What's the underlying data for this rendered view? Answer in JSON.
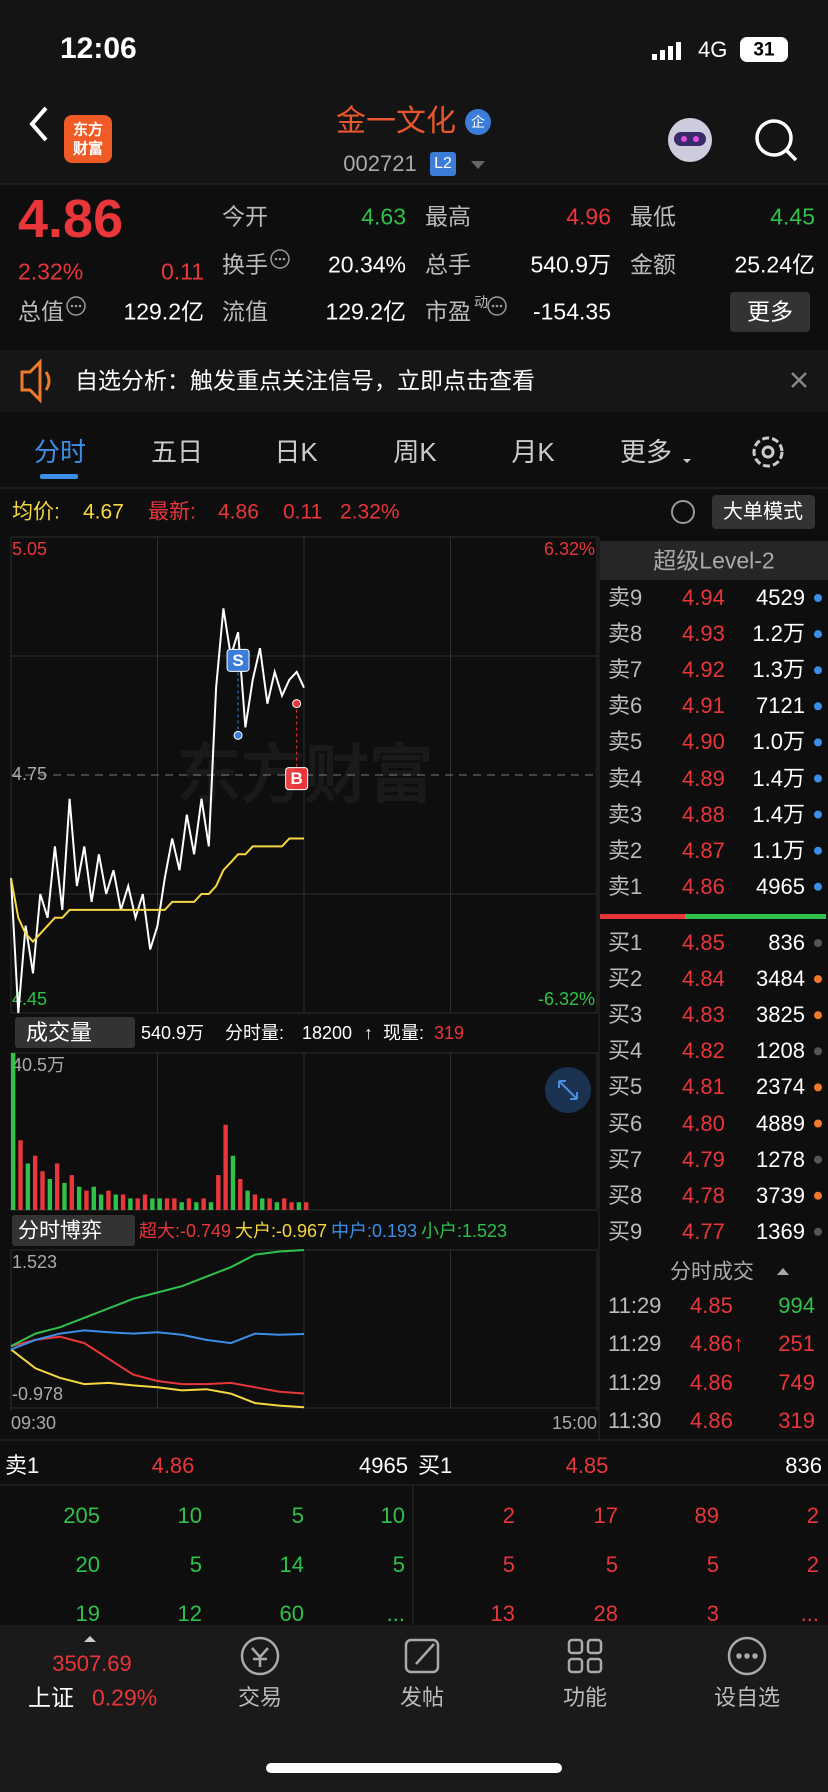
{
  "status": {
    "time": "12:06",
    "network": "4G",
    "battery": "31"
  },
  "nav": {
    "logo": [
      "东方",
      "财富"
    ],
    "title": "金一文化",
    "badge": "企",
    "code": "002721",
    "level": "L2"
  },
  "quote": {
    "price": "4.86",
    "change_pct": "2.32%",
    "change": "0.11",
    "stats": [
      [
        {
          "label": "今开",
          "value": "4.63",
          "color": "#2fc14a"
        },
        {
          "label": "最高",
          "value": "4.96",
          "color": "#e8363a"
        },
        {
          "label": "最低",
          "value": "4.45",
          "color": "#2fc14a"
        }
      ],
      [
        {
          "label": "换手",
          "value": "20.34%",
          "info": true
        },
        {
          "label": "总手",
          "value": "540.9万"
        },
        {
          "label": "金额",
          "value": "25.24亿"
        }
      ],
      [
        {
          "label": "总值",
          "value": "129.2亿",
          "info": true
        },
        {
          "label": "流值",
          "value": "129.2亿"
        },
        {
          "label": "市盈",
          "sup": "动",
          "value": "-154.35",
          "info": true
        }
      ]
    ],
    "more": "更多"
  },
  "notice": "自选分析：触发重点关注信号，立即点击查看",
  "tabs": {
    "items": [
      "分时",
      "五日",
      "日K",
      "周K",
      "月K",
      "更多"
    ],
    "active": 0
  },
  "summary": {
    "avg_label": "均价:",
    "avg": "4.67",
    "latest_label": "最新:",
    "latest": "4.86",
    "change": "0.11",
    "change_pct": "2.32%",
    "mode_button": "大单模式"
  },
  "watermark": "东方财富",
  "chart_data": [
    {
      "type": "line",
      "xlim": [
        0,
        240
      ],
      "ylim": [
        4.45,
        5.05
      ],
      "yticks": [
        5.05,
        4.75,
        4.45
      ],
      "y2lim": [
        -6.32,
        6.32
      ],
      "y2ticks": [
        {
          "value": 6.32,
          "label": "6.32%"
        },
        {
          "value": -6.32,
          "label": "-6.32%"
        }
      ],
      "x": [
        0,
        3,
        6,
        9,
        12,
        15,
        18,
        21,
        24,
        27,
        30,
        33,
        36,
        39,
        42,
        45,
        48,
        51,
        54,
        57,
        60,
        63,
        66,
        69,
        72,
        75,
        78,
        81,
        84,
        87,
        90,
        93,
        96,
        99,
        102,
        105,
        108,
        111,
        114,
        117,
        120
      ],
      "series": [
        {
          "color": "#ffffff",
          "values": [
            4.62,
            4.45,
            4.56,
            4.5,
            4.6,
            4.57,
            4.66,
            4.58,
            4.72,
            4.61,
            4.66,
            4.59,
            4.65,
            4.6,
            4.63,
            4.58,
            4.61,
            4.57,
            4.6,
            4.53,
            4.56,
            4.62,
            4.67,
            4.63,
            4.7,
            4.65,
            4.72,
            4.66,
            4.86,
            4.96,
            4.9,
            4.93,
            4.81,
            4.87,
            4.91,
            4.84,
            4.88,
            4.85,
            4.87,
            4.88,
            4.86
          ]
        },
        {
          "color": "#f5d742",
          "values": [
            4.62,
            4.57,
            4.55,
            4.54,
            4.55,
            4.56,
            4.57,
            4.57,
            4.58,
            4.58,
            4.58,
            4.58,
            4.58,
            4.58,
            4.58,
            4.58,
            4.58,
            4.58,
            4.58,
            4.58,
            4.58,
            4.58,
            4.59,
            4.59,
            4.59,
            4.59,
            4.6,
            4.6,
            4.61,
            4.63,
            4.64,
            4.65,
            4.65,
            4.66,
            4.66,
            4.66,
            4.66,
            4.66,
            4.67,
            4.67,
            4.67
          ]
        }
      ],
      "annotations": [
        {
          "label": "S",
          "x": 93,
          "y": 4.8,
          "color": "#3b7dd8"
        },
        {
          "label": "B",
          "x": 117,
          "y": 4.84,
          "color": "#e8363a"
        }
      ]
    },
    {
      "type": "bar",
      "xlim": [
        0,
        240
      ],
      "ylim": [
        0,
        40.5
      ],
      "yticks": [
        {
          "value": 40.5,
          "label": "40.5万"
        }
      ],
      "x": [
        0,
        3,
        6,
        9,
        12,
        15,
        18,
        21,
        24,
        27,
        30,
        33,
        36,
        39,
        42,
        45,
        48,
        51,
        54,
        57,
        60,
        63,
        66,
        69,
        72,
        75,
        78,
        81,
        84,
        87,
        90,
        93,
        96,
        99,
        102,
        105,
        108,
        111,
        114,
        117,
        120
      ],
      "values": [
        40.5,
        18,
        12,
        14,
        10,
        8,
        12,
        7,
        9,
        6,
        5,
        6,
        4,
        5,
        4,
        4,
        3,
        3,
        4,
        3,
        3,
        3,
        3,
        2,
        3,
        2,
        3,
        2,
        9,
        22,
        14,
        8,
        5,
        4,
        3,
        3,
        2,
        3,
        2,
        2,
        2
      ],
      "colors": [
        "#2fc14a",
        "#e8363a",
        "#2fc14a",
        "#e8363a",
        "#e8363a",
        "#2fc14a",
        "#e8363a",
        "#2fc14a",
        "#e8363a",
        "#2fc14a",
        "#e8363a",
        "#2fc14a",
        "#2fc14a",
        "#e8363a",
        "#2fc14a",
        "#e8363a",
        "#2fc14a",
        "#e8363a",
        "#e8363a",
        "#2fc14a",
        "#2fc14a",
        "#e8363a",
        "#e8363a",
        "#2fc14a",
        "#e8363a",
        "#2fc14a",
        "#e8363a",
        "#2fc14a",
        "#e8363a",
        "#e8363a",
        "#2fc14a",
        "#e8363a",
        "#2fc14a",
        "#e8363a",
        "#2fc14a",
        "#e8363a",
        "#2fc14a",
        "#e8363a",
        "#e8363a",
        "#2fc14a",
        "#e8363a"
      ]
    },
    {
      "type": "line",
      "xlim": [
        0,
        240
      ],
      "ylim": [
        -0.978,
        1.523
      ],
      "yticks": [
        1.523,
        -0.978
      ],
      "xticks": [
        {
          "value": 0,
          "label": "09:30"
        },
        {
          "value": 240,
          "label": "15:00"
        }
      ],
      "x": [
        0,
        10,
        20,
        30,
        40,
        50,
        60,
        70,
        80,
        90,
        100,
        110,
        120
      ],
      "series": [
        {
          "name": "超大:",
          "color": "#e8363a",
          "values": [
            0,
            0.1,
            0.15,
            0.05,
            -0.2,
            -0.45,
            -0.55,
            -0.6,
            -0.6,
            -0.58,
            -0.65,
            -0.72,
            -0.749
          ]
        },
        {
          "name": "大户:",
          "color": "#f5d742",
          "values": [
            -0.05,
            -0.35,
            -0.5,
            -0.6,
            -0.58,
            -0.62,
            -0.65,
            -0.7,
            -0.68,
            -0.75,
            -0.9,
            -0.94,
            -0.967
          ]
        },
        {
          "name": "中户:",
          "color": "#3b8fe8",
          "values": [
            -0.05,
            0.1,
            0.2,
            0.25,
            0.22,
            0.2,
            0.22,
            0.18,
            0.1,
            0.05,
            0.2,
            0.18,
            0.193
          ]
        },
        {
          "name": "小户:",
          "color": "#2fc14a",
          "values": [
            0,
            0.2,
            0.3,
            0.45,
            0.6,
            0.75,
            0.85,
            0.95,
            1.1,
            1.25,
            1.45,
            1.5,
            1.523
          ]
        }
      ]
    }
  ],
  "volume_bar": {
    "selector": "成交量",
    "total": "540.9万",
    "interval_label": "分时量:",
    "interval": "18200",
    "arrow": "↑",
    "current_label": "现量:",
    "current": "319"
  },
  "flow_bar": {
    "selector": "分时博弈"
  },
  "order_book": {
    "title": "超级Level-2",
    "asks": [
      {
        "label": "卖9",
        "price": "4.94",
        "volume": "4529"
      },
      {
        "label": "卖8",
        "price": "4.93",
        "volume": "1.2万"
      },
      {
        "label": "卖7",
        "price": "4.92",
        "volume": "1.3万"
      },
      {
        "label": "卖6",
        "price": "4.91",
        "volume": "7121"
      },
      {
        "label": "卖5",
        "price": "4.90",
        "volume": "1.0万"
      },
      {
        "label": "卖4",
        "price": "4.89",
        "volume": "1.4万"
      },
      {
        "label": "卖3",
        "price": "4.88",
        "volume": "1.4万"
      },
      {
        "label": "卖2",
        "price": "4.87",
        "volume": "1.1万"
      },
      {
        "label": "卖1",
        "price": "4.86",
        "volume": "4965"
      }
    ],
    "bids": [
      {
        "label": "买1",
        "price": "4.85",
        "volume": "836",
        "dot": "#555"
      },
      {
        "label": "买2",
        "price": "4.84",
        "volume": "3484",
        "dot": "#f07a2a"
      },
      {
        "label": "买3",
        "price": "4.83",
        "volume": "3825",
        "dot": "#f07a2a"
      },
      {
        "label": "买4",
        "price": "4.82",
        "volume": "1208",
        "dot": "#555"
      },
      {
        "label": "买5",
        "price": "4.81",
        "volume": "2374",
        "dot": "#f07a2a"
      },
      {
        "label": "买6",
        "price": "4.80",
        "volume": "4889",
        "dot": "#f07a2a"
      },
      {
        "label": "买7",
        "price": "4.79",
        "volume": "1278",
        "dot": "#555"
      },
      {
        "label": "买8",
        "price": "4.78",
        "volume": "3739",
        "dot": "#f07a2a"
      },
      {
        "label": "买9",
        "price": "4.77",
        "volume": "1369",
        "dot": "#555"
      }
    ]
  },
  "trades": {
    "title": "分时成交",
    "rows": [
      {
        "time": "11:29",
        "price": "4.85",
        "volume": "994",
        "price_color": "#e8363a",
        "volume_color": "#2fc14a"
      },
      {
        "time": "11:29",
        "price": "4.86↑",
        "volume": "251",
        "price_color": "#e8363a",
        "volume_color": "#e8363a"
      },
      {
        "time": "11:29",
        "price": "4.86",
        "volume": "749",
        "price_color": "#e8363a",
        "volume_color": "#e8363a"
      },
      {
        "time": "11:30",
        "price": "4.86",
        "volume": "319",
        "price_color": "#e8363a",
        "volume_color": "#e8363a"
      }
    ]
  },
  "depth": {
    "ask": {
      "label": "卖1",
      "price": "4.86",
      "volume": "4965"
    },
    "bid": {
      "label": "买1",
      "price": "4.85",
      "volume": "836"
    },
    "ask_grid": [
      [
        "205",
        "10",
        "5",
        "10"
      ],
      [
        "20",
        "5",
        "14",
        "5"
      ],
      [
        "19",
        "12",
        "60",
        "..."
      ]
    ],
    "bid_grid": [
      [
        "2",
        "17",
        "89",
        "2"
      ],
      [
        "5",
        "5",
        "5",
        "2"
      ],
      [
        "13",
        "28",
        "3",
        "..."
      ]
    ]
  },
  "tabbar": {
    "index": {
      "value": "3507.69",
      "name": "上证",
      "change": "0.29%"
    },
    "items": [
      "交易",
      "发帖",
      "功能",
      "设自选"
    ]
  }
}
